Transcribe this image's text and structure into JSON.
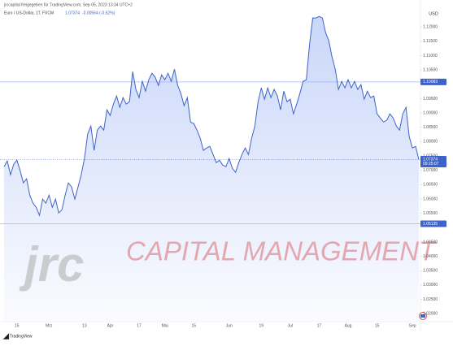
{
  "chart_data": {
    "type": "area",
    "header": "jrccapital freigegeben für TradingView.com, Sep 05, 2023 13:34 UTC+2",
    "symbol": "Euro / US-Dollar, 1T, FXCM",
    "change": "-0.00564 (-0.52%)",
    "currency": "USD",
    "countdown": "09:25:07",
    "watermark_logo": "jrc",
    "watermark_text": "CAPITAL MANAGEMENT",
    "footer": "TradingView",
    "color": "#3d63c9",
    "fill_color": "#9fb6f5",
    "price_lines": [
      1.10083,
      1.05135
    ],
    "ylim": [
      1.0175,
      1.126
    ],
    "yticks": [
      {
        "value": 1.12,
        "label": "1.12000"
      },
      {
        "value": 1.115,
        "label": "1.11500"
      },
      {
        "value": 1.11,
        "label": "1.11000"
      },
      {
        "value": 1.105,
        "label": "1.10500"
      },
      {
        "value": 1.095,
        "label": "1.09500"
      },
      {
        "value": 1.09,
        "label": "1.09000"
      },
      {
        "value": 1.085,
        "label": "1.08500"
      },
      {
        "value": 1.08,
        "label": "1.08000"
      },
      {
        "value": 1.075,
        "label": "1.07500"
      },
      {
        "value": 1.07,
        "label": "1.07000"
      },
      {
        "value": 1.065,
        "label": "1.06500"
      },
      {
        "value": 1.06,
        "label": "1.06000"
      },
      {
        "value": 1.055,
        "label": "1.05500"
      },
      {
        "value": 1.045,
        "label": "1.04500"
      },
      {
        "value": 1.04,
        "label": "1.04000"
      },
      {
        "value": 1.035,
        "label": "1.03500"
      },
      {
        "value": 1.03,
        "label": "1.03000"
      },
      {
        "value": 1.025,
        "label": "1.02500"
      },
      {
        "value": 1.02,
        "label": "1.02000"
      }
    ],
    "categories": [
      null,
      null,
      null,
      null,
      "15",
      null,
      null,
      null,
      null,
      null,
      null,
      null,
      null,
      null,
      "Mrz",
      null,
      null,
      null,
      null,
      null,
      null,
      null,
      null,
      null,
      null,
      "13",
      null,
      null,
      null,
      null,
      null,
      null,
      null,
      "Apr",
      null,
      null,
      null,
      null,
      null,
      null,
      null,
      null,
      "17",
      null,
      null,
      null,
      null,
      null,
      null,
      null,
      "Mai",
      null,
      null,
      null,
      null,
      null,
      null,
      null,
      null,
      "15",
      null,
      null,
      null,
      null,
      null,
      null,
      null,
      null,
      null,
      null,
      "Jun",
      null,
      null,
      null,
      null,
      null,
      null,
      null,
      null,
      null,
      "19",
      null,
      null,
      null,
      null,
      null,
      null,
      null,
      null,
      "Jul",
      null,
      null,
      null,
      null,
      null,
      null,
      null,
      null,
      "17",
      null,
      null,
      null,
      null,
      null,
      null,
      null,
      null,
      "Aug",
      null,
      null,
      null,
      null,
      null,
      null,
      null,
      null,
      "15",
      null,
      null,
      null,
      null,
      null,
      null,
      null,
      null,
      null,
      null,
      "Sep",
      null,
      null
    ],
    "values": [
      1.07127,
      1.07326,
      1.06844,
      1.07212,
      1.07354,
      1.06986,
      1.06561,
      1.06703,
      1.06136,
      1.05853,
      1.05711,
      1.05428,
      1.05994,
      1.05853,
      1.06136,
      1.05711,
      1.05994,
      1.05513,
      1.05626,
      1.06136,
      1.06561,
      1.06419,
      1.05994,
      1.06419,
      1.06844,
      1.07411,
      1.08261,
      1.08544,
      1.07694,
      1.08402,
      1.08544,
      1.08402,
      1.0911,
      1.08912,
      1.09309,
      1.09592,
      1.09195,
      1.09535,
      1.09309,
      1.09394,
      1.10442,
      1.09819,
      1.09535,
      1.10102,
      1.09762,
      1.10159,
      1.10385,
      1.10244,
      1.0996,
      1.10329,
      1.10159,
      1.10385,
      1.10102,
      1.10527,
      1.0996,
      1.09677,
      1.09252,
      1.09535,
      1.08686,
      1.08629,
      1.08402,
      1.08119,
      1.07694,
      1.07779,
      1.07836,
      1.07552,
      1.07269,
      1.07354,
      1.07184,
      1.07127,
      1.07411,
      1.07071,
      1.06929,
      1.07269,
      1.07552,
      1.07779,
      1.07552,
      1.08119,
      1.08544,
      1.09394,
      1.09875,
      1.09479,
      1.09875,
      1.09535,
      1.09819,
      1.09592,
      1.0911,
      1.09762,
      1.09394,
      1.09479,
      1.08969,
      1.09309,
      1.09677,
      1.10102,
      1.10159,
      1.11377,
      1.12312,
      1.12312,
      1.12368,
      1.12312,
      1.11802,
      1.11518,
      1.10952,
      1.10527,
      1.09819,
      1.10102,
      1.09875,
      1.10159,
      1.09875,
      1.10102,
      1.09819,
      1.09989,
      1.09479,
      1.09762,
      1.09535,
      1.09592,
      1.08969,
      1.08827,
      1.08686,
      1.08742,
      1.08969,
      1.08827,
      1.08544,
      1.08402,
      1.08969,
      1.09195,
      1.08176,
      1.07779,
      1.07836,
      1.07374
    ]
  }
}
